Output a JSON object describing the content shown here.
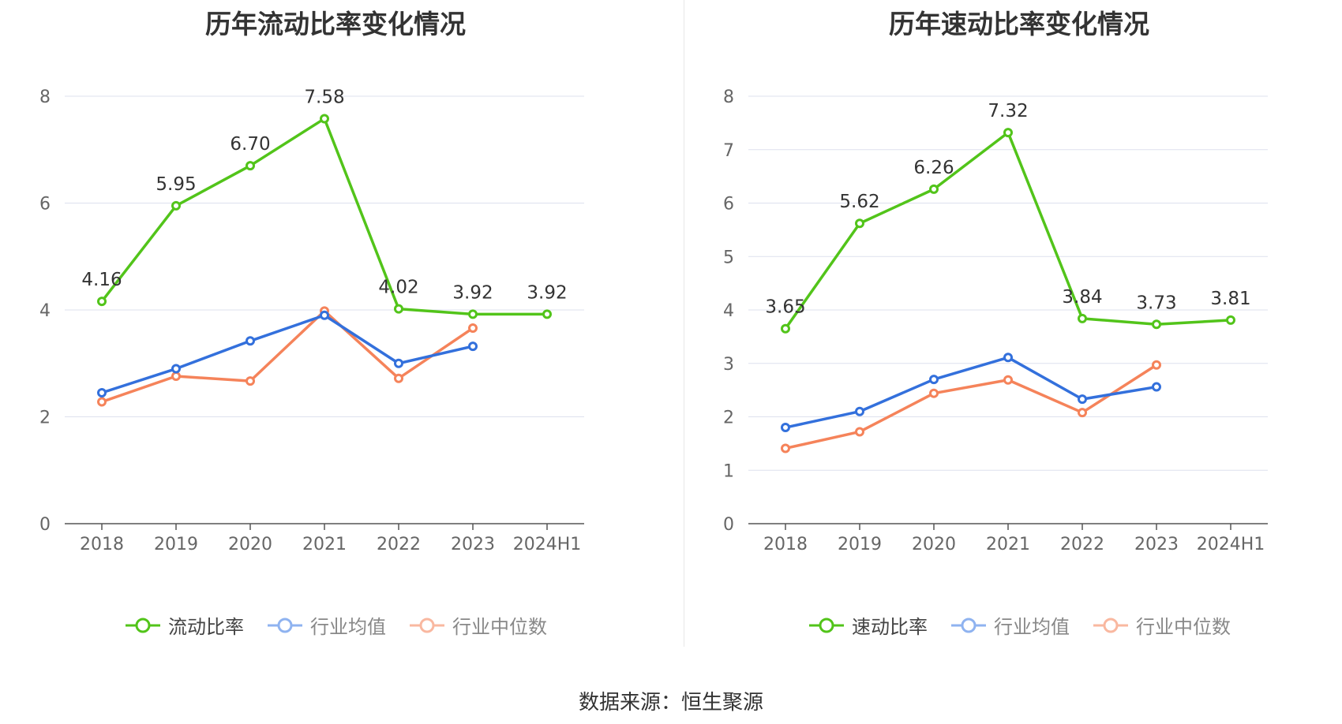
{
  "source": "数据来源：恒生聚源",
  "categories": [
    "2018",
    "2019",
    "2020",
    "2021",
    "2022",
    "2023",
    "2024H1"
  ],
  "colors": {
    "main": "#52c41a",
    "avg": "#3370dc",
    "median": "#f5835a",
    "avg_legend": "#8fb3f0",
    "median_legend": "#f9b8a0"
  },
  "chart_data": [
    {
      "type": "line",
      "title": "历年流动比率变化情况",
      "categories": [
        "2018",
        "2019",
        "2020",
        "2021",
        "2022",
        "2023",
        "2024H1"
      ],
      "ylim": [
        0,
        8
      ],
      "yticks": [
        0,
        2,
        4,
        6,
        8
      ],
      "yticklabels": [
        "0",
        "2",
        "4",
        "6",
        "8"
      ],
      "grid": true,
      "legend_position": "bottom",
      "series": [
        {
          "name": "流动比率",
          "values": [
            4.16,
            5.95,
            6.7,
            7.58,
            4.02,
            3.92,
            3.92
          ],
          "labels": [
            "4.16",
            "5.95",
            "6.70",
            "7.58",
            "4.02",
            "3.92",
            "3.92"
          ]
        },
        {
          "name": "行业均值",
          "values": [
            2.45,
            2.9,
            3.42,
            3.9,
            3.0,
            3.32,
            null
          ]
        },
        {
          "name": "行业中位数",
          "values": [
            2.28,
            2.76,
            2.67,
            3.98,
            2.72,
            3.66,
            null
          ]
        }
      ]
    },
    {
      "type": "line",
      "title": "历年速动比率变化情况",
      "categories": [
        "2018",
        "2019",
        "2020",
        "2021",
        "2022",
        "2023",
        "2024H1"
      ],
      "ylim": [
        0,
        8
      ],
      "yticks": [
        0,
        1,
        2,
        3,
        4,
        5,
        6,
        7,
        8
      ],
      "yticklabels": [
        "0",
        "1",
        "2",
        "3",
        "4",
        "5",
        "6",
        "7",
        "8"
      ],
      "grid": true,
      "legend_position": "bottom",
      "series": [
        {
          "name": "速动比率",
          "values": [
            3.65,
            5.62,
            6.26,
            7.32,
            3.84,
            3.73,
            3.81
          ],
          "labels": [
            "3.65",
            "5.62",
            "6.26",
            "7.32",
            "3.84",
            "3.73",
            "3.81"
          ]
        },
        {
          "name": "行业均值",
          "values": [
            1.8,
            2.1,
            2.7,
            3.11,
            2.33,
            2.56,
            null
          ]
        },
        {
          "name": "行业中位数",
          "values": [
            1.41,
            1.72,
            2.44,
            2.69,
            2.08,
            2.97,
            null
          ]
        }
      ]
    }
  ]
}
